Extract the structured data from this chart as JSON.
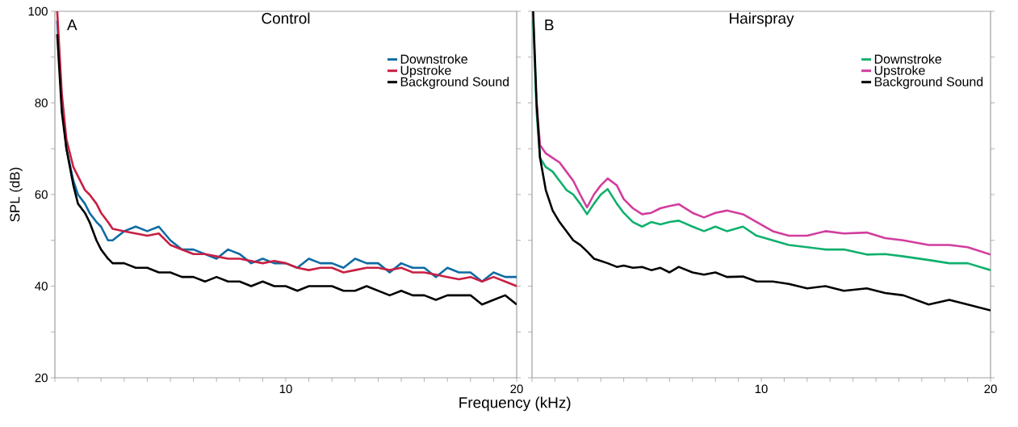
{
  "chart_data": [
    {
      "type": "line",
      "title": "Control",
      "xlabel": "Frequency (kHz)",
      "ylabel": "SPL (dB)",
      "annotations": [
        "A"
      ],
      "xlim": [
        0,
        20
      ],
      "ylim": [
        20,
        100
      ],
      "xticks": [
        {
          "value": 0,
          "label": null
        },
        {
          "value": 1,
          "label": null
        },
        {
          "value": 2,
          "label": null
        },
        {
          "value": 3,
          "label": null
        },
        {
          "value": 4,
          "label": null
        },
        {
          "value": 5,
          "label": null
        },
        {
          "value": 6,
          "label": null
        },
        {
          "value": 7,
          "label": null
        },
        {
          "value": 8,
          "label": null
        },
        {
          "value": 9,
          "label": null
        },
        10,
        {
          "value": 11,
          "label": null
        },
        {
          "value": 12,
          "label": null
        },
        {
          "value": 13,
          "label": null
        },
        {
          "value": 14,
          "label": null
        },
        {
          "value": 15,
          "label": null
        },
        {
          "value": 16,
          "label": null
        },
        {
          "value": 17,
          "label": null
        },
        {
          "value": 18,
          "label": null
        },
        {
          "value": 19,
          "label": null
        },
        20
      ],
      "yticks": [
        20,
        {
          "value": 30,
          "label": null
        },
        40,
        {
          "value": 50,
          "label": null
        },
        60,
        {
          "value": 70,
          "label": null
        },
        80,
        {
          "value": 90,
          "label": null
        },
        100
      ],
      "legend": "top right",
      "grid": false,
      "marker": "none",
      "line_style": "solid",
      "x": [
        0.1,
        0.3,
        0.5,
        0.8,
        1,
        1.3,
        1.5,
        1.8,
        2,
        2.3,
        2.5,
        3,
        3.5,
        4,
        4.5,
        5,
        5.5,
        6,
        6.5,
        7,
        7.5,
        8,
        8.5,
        9,
        9.5,
        10,
        10.5,
        11,
        11.5,
        12,
        12.5,
        13,
        13.5,
        14,
        14.5,
        15,
        15.5,
        16,
        16.5,
        17,
        17.5,
        18,
        18.5,
        19,
        19.5,
        20
      ],
      "series": [
        {
          "name": "Downstroke",
          "color": "#0e6ba3",
          "values": [
            98,
            80,
            70,
            63,
            60,
            58,
            56,
            54,
            53,
            50,
            50,
            52,
            53,
            52,
            53,
            50,
            48,
            48,
            47,
            46,
            48,
            47,
            45,
            46,
            45,
            45,
            44,
            46,
            45,
            45,
            44,
            46,
            45,
            45,
            43,
            45,
            44,
            44,
            42,
            44,
            43,
            43,
            41,
            43,
            42,
            42
          ]
        },
        {
          "name": "Upstroke",
          "color": "#c81f42",
          "values": [
            100,
            82,
            72,
            66,
            64,
            61,
            60,
            58,
            56,
            54,
            52.5,
            52,
            51.5,
            51,
            51.5,
            49,
            48,
            47,
            47,
            46.5,
            46,
            46,
            45.5,
            45,
            45.5,
            45,
            44,
            43.5,
            44,
            44,
            43,
            43.5,
            44,
            44,
            43.5,
            44,
            43,
            43,
            42.5,
            42,
            41.5,
            42,
            41,
            42,
            41,
            40
          ]
        },
        {
          "name": "Background Sound",
          "color": "#000000",
          "values": [
            95,
            78,
            70,
            62,
            58,
            56,
            54,
            50,
            48,
            46,
            45,
            45,
            44,
            44,
            43,
            43,
            42,
            42,
            41,
            42,
            41,
            41,
            40,
            41,
            40,
            40,
            39,
            40,
            40,
            40,
            39,
            39,
            40,
            39,
            38,
            39,
            38,
            38,
            37,
            38,
            38,
            38,
            36,
            37,
            38,
            36
          ]
        }
      ]
    },
    {
      "type": "line",
      "title": "Hairspray",
      "annotations": [
        "B"
      ],
      "xlim": [
        0,
        20
      ],
      "ylim": [
        20,
        100
      ],
      "xticks": [
        {
          "value": 0,
          "label": null
        },
        {
          "value": 1,
          "label": null
        },
        {
          "value": 2,
          "label": null
        },
        {
          "value": 3,
          "label": null
        },
        {
          "value": 4,
          "label": null
        },
        {
          "value": 5,
          "label": null
        },
        {
          "value": 6,
          "label": null
        },
        {
          "value": 7,
          "label": null
        },
        {
          "value": 8,
          "label": null
        },
        {
          "value": 9,
          "label": null
        },
        10,
        {
          "value": 11,
          "label": null
        },
        {
          "value": 12,
          "label": null
        },
        {
          "value": 13,
          "label": null
        },
        {
          "value": 14,
          "label": null
        },
        {
          "value": 15,
          "label": null
        },
        {
          "value": 16,
          "label": null
        },
        {
          "value": 17,
          "label": null
        },
        {
          "value": 18,
          "label": null
        },
        {
          "value": 19,
          "label": null
        },
        20
      ],
      "yticks": [
        20,
        30,
        40,
        50,
        60,
        70,
        80,
        90,
        100
      ],
      "tick_labels": "x",
      "legend": "top right",
      "grid": false,
      "marker": "none",
      "line_style": "solid",
      "x": [
        0.05,
        0.2,
        0.35,
        0.6,
        0.9,
        1.2,
        1.5,
        1.8,
        2.1,
        2.4,
        2.7,
        3,
        3.3,
        3.7,
        4,
        4.4,
        4.8,
        5.2,
        5.6,
        6,
        6.4,
        7,
        7.5,
        8,
        8.5,
        9.2,
        9.8,
        10.5,
        11.2,
        12,
        12.8,
        13.6,
        14.6,
        15.4,
        16.2,
        17.3,
        18.2,
        19,
        20
      ],
      "series": [
        {
          "name": "Downstroke",
          "color": "#10b06e",
          "values": [
            98,
            78,
            68,
            66,
            65,
            63,
            61,
            60,
            58,
            55.7,
            58,
            60,
            61.2,
            58,
            56,
            54,
            53,
            54,
            53.5,
            54,
            54.3,
            53,
            52,
            53,
            52,
            53,
            51,
            50,
            49,
            48.5,
            48,
            48,
            46.9,
            47,
            46.5,
            45.7,
            45,
            45,
            43.5
          ]
        },
        {
          "name": "Upstroke",
          "color": "#d23d9e",
          "values": [
            null,
            80,
            70.8,
            69,
            68,
            67,
            65,
            63,
            60,
            57.2,
            60,
            62,
            63.5,
            62,
            59,
            57,
            55.7,
            56,
            57,
            57.5,
            57.9,
            56,
            55,
            56,
            56.5,
            55.7,
            54,
            52,
            51,
            51,
            52,
            51.5,
            51.7,
            50.5,
            50,
            49,
            49,
            48.5,
            46.9
          ]
        },
        {
          "name": "Background Sound",
          "color": "#000000",
          "values": [
            100,
            80,
            68,
            61,
            56.5,
            54,
            52,
            50,
            49,
            47.6,
            46,
            45.5,
            45,
            44.2,
            44.5,
            44,
            44.2,
            43.5,
            44,
            43,
            44.2,
            43,
            42.5,
            43,
            42,
            42.1,
            41,
            41,
            40.5,
            39.5,
            40,
            39,
            39.5,
            38.5,
            38,
            36,
            37,
            36,
            34.7
          ]
        }
      ]
    }
  ]
}
